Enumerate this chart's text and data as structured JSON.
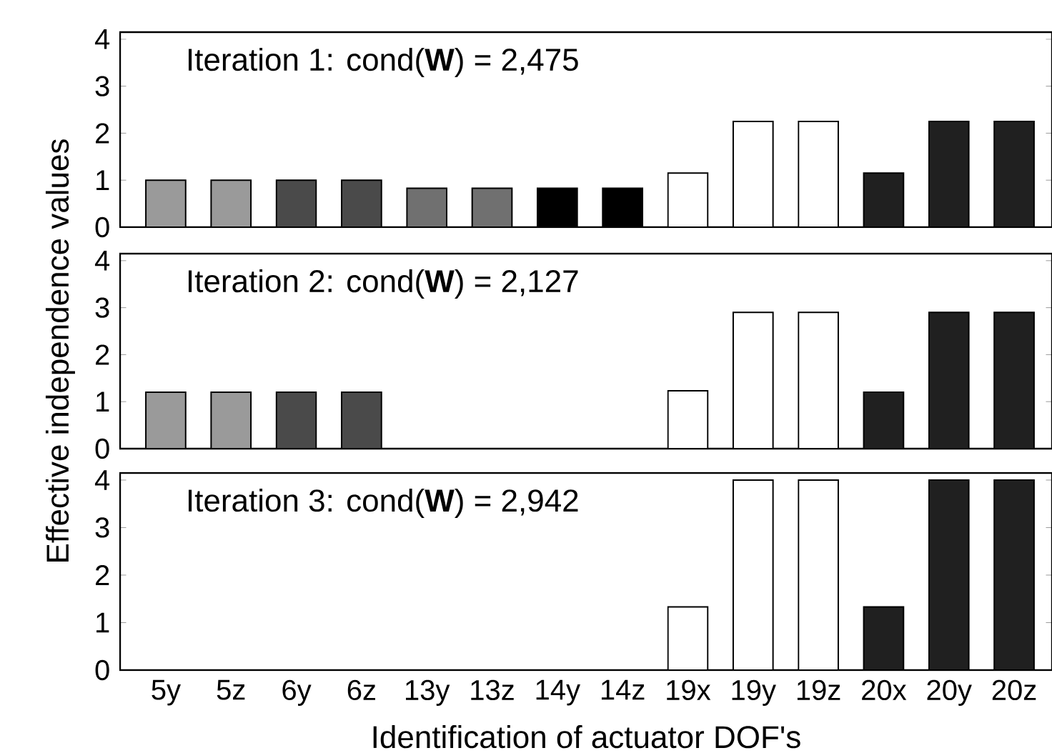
{
  "chart_data": [
    {
      "type": "bar",
      "title": "Iteration 1:  cond(**W**) = 2,475",
      "values": [
        1.0,
        1.0,
        1.0,
        1.0,
        0.83,
        0.83,
        0.83,
        0.83,
        1.15,
        2.25,
        2.25,
        1.15,
        2.25,
        2.25
      ],
      "colors": [
        "#9a9a9a",
        "#9a9a9a",
        "#4a4a4a",
        "#4a4a4a",
        "#707070",
        "#707070",
        "#000000",
        "#000000",
        "#ffffff",
        "#ffffff",
        "#ffffff",
        "#202020",
        "#202020",
        "#202020"
      ],
      "ylim": [
        0,
        4.15
      ],
      "yticks": [
        0,
        1,
        2,
        3,
        4
      ],
      "tick_labels": "y"
    },
    {
      "type": "bar",
      "title": "Iteration 2:  cond(**W**) = 2,127",
      "ylabel": "Effective independence values",
      "values": [
        1.2,
        1.2,
        1.2,
        1.2,
        null,
        null,
        null,
        null,
        1.23,
        2.9,
        2.9,
        1.2,
        2.9,
        2.9
      ],
      "colors": [
        "#9a9a9a",
        "#9a9a9a",
        "#4a4a4a",
        "#4a4a4a",
        "#707070",
        "#707070",
        "#000000",
        "#000000",
        "#ffffff",
        "#ffffff",
        "#ffffff",
        "#202020",
        "#202020",
        "#202020"
      ],
      "ylim": [
        0,
        4.15
      ],
      "yticks": [
        0,
        1,
        2,
        3,
        4
      ],
      "tick_labels": "y"
    },
    {
      "type": "bar",
      "title": "Iteration 3:  cond(**W**) = 2,942",
      "xlabel": "Identification of actuator DOF's",
      "categories": [
        "5y",
        "5z",
        "6y",
        "6z",
        "13y",
        "13z",
        "14y",
        "14z",
        "19x",
        "19y",
        "19z",
        "20x",
        "20y",
        "20z"
      ],
      "values": [
        null,
        null,
        null,
        null,
        null,
        null,
        null,
        null,
        1.33,
        4.0,
        4.0,
        1.33,
        4.0,
        4.0
      ],
      "colors": [
        "#9a9a9a",
        "#9a9a9a",
        "#4a4a4a",
        "#4a4a4a",
        "#707070",
        "#707070",
        "#000000",
        "#000000",
        "#ffffff",
        "#ffffff",
        "#ffffff",
        "#202020",
        "#202020",
        "#202020"
      ],
      "ylim": [
        0,
        4.15
      ],
      "yticks": [
        0,
        1,
        2,
        3,
        4
      ]
    }
  ]
}
